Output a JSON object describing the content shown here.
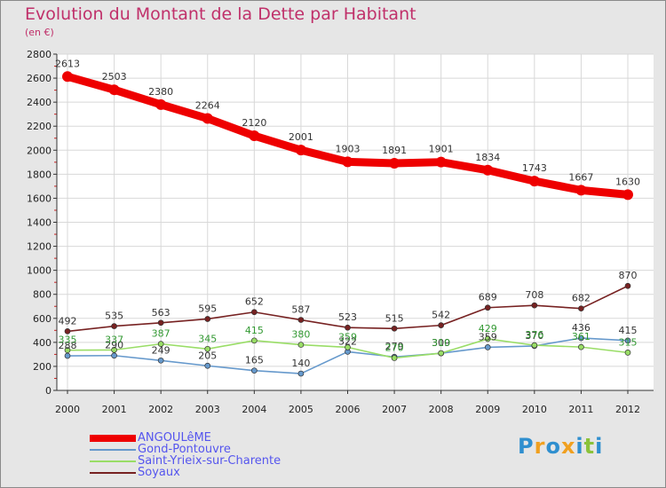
{
  "title": "Evolution du Montant de la Dette par Habitant",
  "subtitle": "(en €)",
  "logo": {
    "text": "Proxiti",
    "letters": [
      {
        "ch": "P",
        "color": "#2f8fcf"
      },
      {
        "ch": "r",
        "color": "#f0a020"
      },
      {
        "ch": "o",
        "color": "#2f8fcf"
      },
      {
        "ch": "x",
        "color": "#f0a020"
      },
      {
        "ch": "i",
        "color": "#2f8fcf"
      },
      {
        "ch": "t",
        "color": "#8bc23a"
      },
      {
        "ch": "i",
        "color": "#2f8fcf"
      }
    ]
  },
  "chart_data": {
    "type": "line",
    "x": [
      "2000",
      "2001",
      "2002",
      "2003",
      "2004",
      "2005",
      "2006",
      "2007",
      "2008",
      "2009",
      "2010",
      "2011",
      "2012"
    ],
    "ylim": [
      0,
      2800
    ],
    "yticks": [
      "0",
      "200",
      "400",
      "600",
      "800",
      "1000",
      "1200",
      "1400",
      "1600",
      "1800",
      "2000",
      "2200",
      "2400",
      "2600",
      "2800"
    ],
    "grid": true,
    "legend_position": "bottom",
    "series": [
      {
        "name": "ANGOULêME",
        "color": "#ee0000",
        "labelColor": "#333333",
        "legendColor": "#5555ee",
        "values": [
          2613,
          2503,
          2380,
          2264,
          2120,
          2001,
          1903,
          1891,
          1901,
          1834,
          1743,
          1667,
          1630
        ],
        "labels": [
          "2613",
          "2503",
          "2380",
          "2264",
          "2120",
          "2001",
          "1903",
          "1891",
          "1901",
          "1834",
          "1743",
          "1667",
          "1630"
        ]
      },
      {
        "name": "Gond-Pontouvre",
        "color": "#6699cc",
        "labelColor": "#333333",
        "legendColor": "#5555ee",
        "values": [
          288,
          290,
          249,
          205,
          165,
          140,
          322,
          279,
          309,
          359,
          370,
          436,
          415
        ],
        "labels": [
          "288",
          "290",
          "249",
          "205",
          "165",
          "140",
          "322",
          "279",
          "309",
          "359",
          "370",
          "436",
          "415"
        ]
      },
      {
        "name": "Saint-Yrieix-sur-Charente",
        "color": "#99dd66",
        "labelColor": "#339933",
        "legendColor": "#5555ee",
        "values": [
          335,
          337,
          387,
          345,
          415,
          380,
          359,
          270,
          310,
          429,
          376,
          361,
          315
        ],
        "labels": [
          "335",
          "337",
          "387",
          "345",
          "415",
          "380",
          "359",
          "270",
          "310",
          "429",
          "376",
          "361",
          "315"
        ]
      },
      {
        "name": "Soyaux",
        "color": "#772222",
        "labelColor": "#333333",
        "legendColor": "#5555ee",
        "values": [
          492,
          535,
          563,
          595,
          652,
          587,
          523,
          515,
          542,
          689,
          708,
          682,
          870
        ],
        "labels": [
          "492",
          "535",
          "563",
          "595",
          "652",
          "587",
          "523",
          "515",
          "542",
          "689",
          "708",
          "682",
          "870"
        ]
      }
    ]
  }
}
